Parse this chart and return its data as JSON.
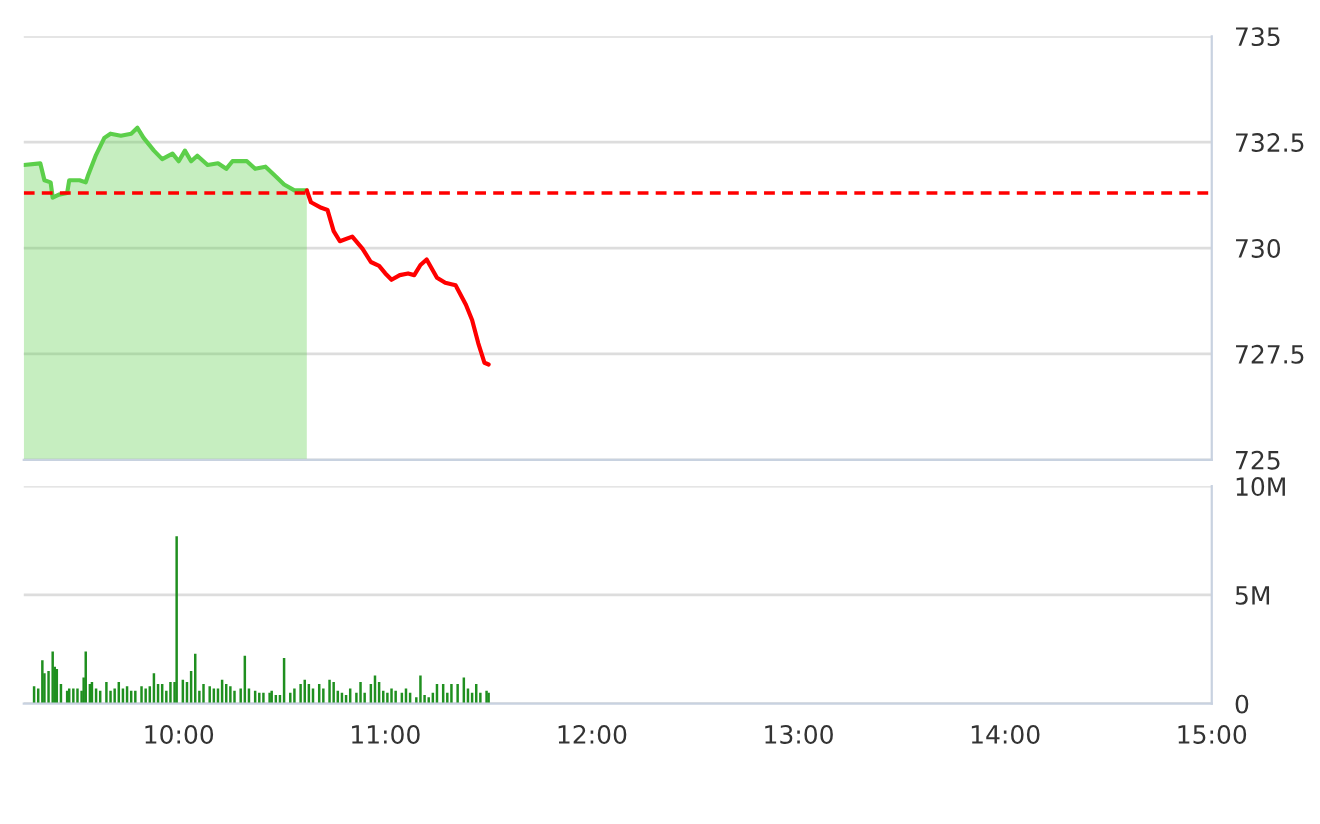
{
  "chart_data": [
    {
      "type": "area",
      "xlim": [
        9.25,
        15
      ],
      "ylim": [
        725,
        735
      ],
      "yticks": [
        735,
        732.5,
        730,
        727.5,
        725
      ],
      "tick_labels": "y",
      "grid": "y",
      "ref_lines": [
        {
          "axis": "y",
          "value": 731.3,
          "color": "#ff0000",
          "line_style": "dashed"
        }
      ],
      "series": [
        {
          "color": "#5ccf4a",
          "x": [
            9.25,
            9.33,
            9.35,
            9.38,
            9.39,
            9.42,
            9.46,
            9.47,
            9.52,
            9.55,
            9.56,
            9.6,
            9.64,
            9.67,
            9.72,
            9.77,
            9.8,
            9.83,
            9.88,
            9.92,
            9.97,
            10.0,
            10.03,
            10.06,
            10.09,
            10.14,
            10.19,
            10.23,
            10.26,
            10.33,
            10.37,
            10.42,
            10.47,
            10.51,
            10.56,
            10.62
          ],
          "values": [
            731.96,
            732.0,
            731.6,
            731.55,
            731.19,
            731.26,
            731.3,
            731.6,
            731.6,
            731.55,
            731.7,
            732.2,
            732.6,
            732.7,
            732.65,
            732.7,
            732.84,
            732.6,
            732.3,
            732.1,
            732.23,
            732.05,
            732.3,
            732.05,
            732.18,
            731.96,
            732.0,
            731.87,
            732.05,
            732.05,
            731.87,
            731.92,
            731.69,
            731.5,
            731.36,
            731.36
          ]
        },
        {
          "type": "line",
          "color": "#ff0000",
          "x": [
            10.62,
            10.64,
            10.69,
            10.72,
            10.75,
            10.78,
            10.84,
            10.89,
            10.93,
            10.97,
            11.0,
            11.03,
            11.07,
            11.11,
            11.14,
            11.17,
            11.2,
            11.25,
            11.29,
            11.34,
            11.39,
            11.42,
            11.45,
            11.48,
            11.5
          ],
          "values": [
            731.36,
            731.08,
            730.95,
            730.9,
            730.4,
            730.16,
            730.27,
            729.98,
            729.67,
            729.58,
            729.4,
            729.25,
            729.36,
            729.4,
            729.36,
            729.6,
            729.73,
            729.3,
            729.18,
            729.12,
            728.66,
            728.3,
            727.75,
            727.29,
            727.25
          ]
        }
      ]
    },
    {
      "type": "bar",
      "xlim": [
        9.25,
        15
      ],
      "ylim": [
        0,
        10
      ],
      "yticks": [
        {
          "value": 10,
          "label": "10M"
        },
        {
          "value": 5,
          "label": "5M"
        },
        0
      ],
      "xticks": [
        {
          "value": 10,
          "label": "10:00"
        },
        {
          "value": 11,
          "label": "11:00"
        },
        {
          "value": 12,
          "label": "12:00"
        },
        {
          "value": 13,
          "label": "13:00"
        },
        {
          "value": 14,
          "label": "14:00"
        },
        {
          "value": 15,
          "label": "15:00"
        }
      ],
      "grid": "y",
      "series": [
        {
          "color": "#1f8f1f",
          "x": [
            9.3,
            9.32,
            9.34,
            9.35,
            9.37,
            9.39,
            9.4,
            9.41,
            9.43,
            9.46,
            9.47,
            9.49,
            9.51,
            9.53,
            9.54,
            9.55,
            9.57,
            9.58,
            9.6,
            9.62,
            9.65,
            9.67,
            9.69,
            9.71,
            9.73,
            9.75,
            9.77,
            9.79,
            9.82,
            9.84,
            9.86,
            9.88,
            9.9,
            9.92,
            9.94,
            9.96,
            9.98,
            9.99,
            10.02,
            10.04,
            10.06,
            10.08,
            10.1,
            10.12,
            10.15,
            10.17,
            10.19,
            10.21,
            10.23,
            10.25,
            10.27,
            10.3,
            10.32,
            10.34,
            10.37,
            10.39,
            10.41,
            10.44,
            10.45,
            10.47,
            10.49,
            10.51,
            10.54,
            10.56,
            10.59,
            10.61,
            10.63,
            10.65,
            10.68,
            10.7,
            10.73,
            10.75,
            10.77,
            10.79,
            10.81,
            10.83,
            10.86,
            10.88,
            10.9,
            10.93,
            10.95,
            10.97,
            10.99,
            11.01,
            11.03,
            11.05,
            11.08,
            11.1,
            11.12,
            11.15,
            11.17,
            11.19,
            11.21,
            11.23,
            11.25,
            11.28,
            11.3,
            11.32,
            11.35,
            11.38,
            11.4,
            11.42,
            11.44,
            11.46,
            11.49,
            11.5
          ],
          "values": [
            0.8,
            0.7,
            2.0,
            1.4,
            1.5,
            2.4,
            1.7,
            1.6,
            0.9,
            0.6,
            0.7,
            0.7,
            0.7,
            0.6,
            1.2,
            2.4,
            0.9,
            1.0,
            0.7,
            0.6,
            1.0,
            0.6,
            0.7,
            1.0,
            0.7,
            0.8,
            0.6,
            0.6,
            0.8,
            0.7,
            0.8,
            1.4,
            0.9,
            0.9,
            0.6,
            1.0,
            1.0,
            7.7,
            1.1,
            1.0,
            1.5,
            2.3,
            0.6,
            0.9,
            0.8,
            0.7,
            0.7,
            1.1,
            0.9,
            0.8,
            0.6,
            0.7,
            2.2,
            0.7,
            0.6,
            0.5,
            0.5,
            0.5,
            0.6,
            0.4,
            0.4,
            2.1,
            0.5,
            0.7,
            0.9,
            1.1,
            0.9,
            0.7,
            0.9,
            0.7,
            1.1,
            1.0,
            0.6,
            0.5,
            0.4,
            0.7,
            0.5,
            1.0,
            0.5,
            0.9,
            1.3,
            1.0,
            0.6,
            0.5,
            0.7,
            0.6,
            0.5,
            0.7,
            0.5,
            0.3,
            1.3,
            0.4,
            0.3,
            0.5,
            0.9,
            0.9,
            0.5,
            0.9,
            0.9,
            1.2,
            0.7,
            0.5,
            0.9,
            0.5,
            0.6,
            0.5
          ]
        }
      ]
    }
  ]
}
